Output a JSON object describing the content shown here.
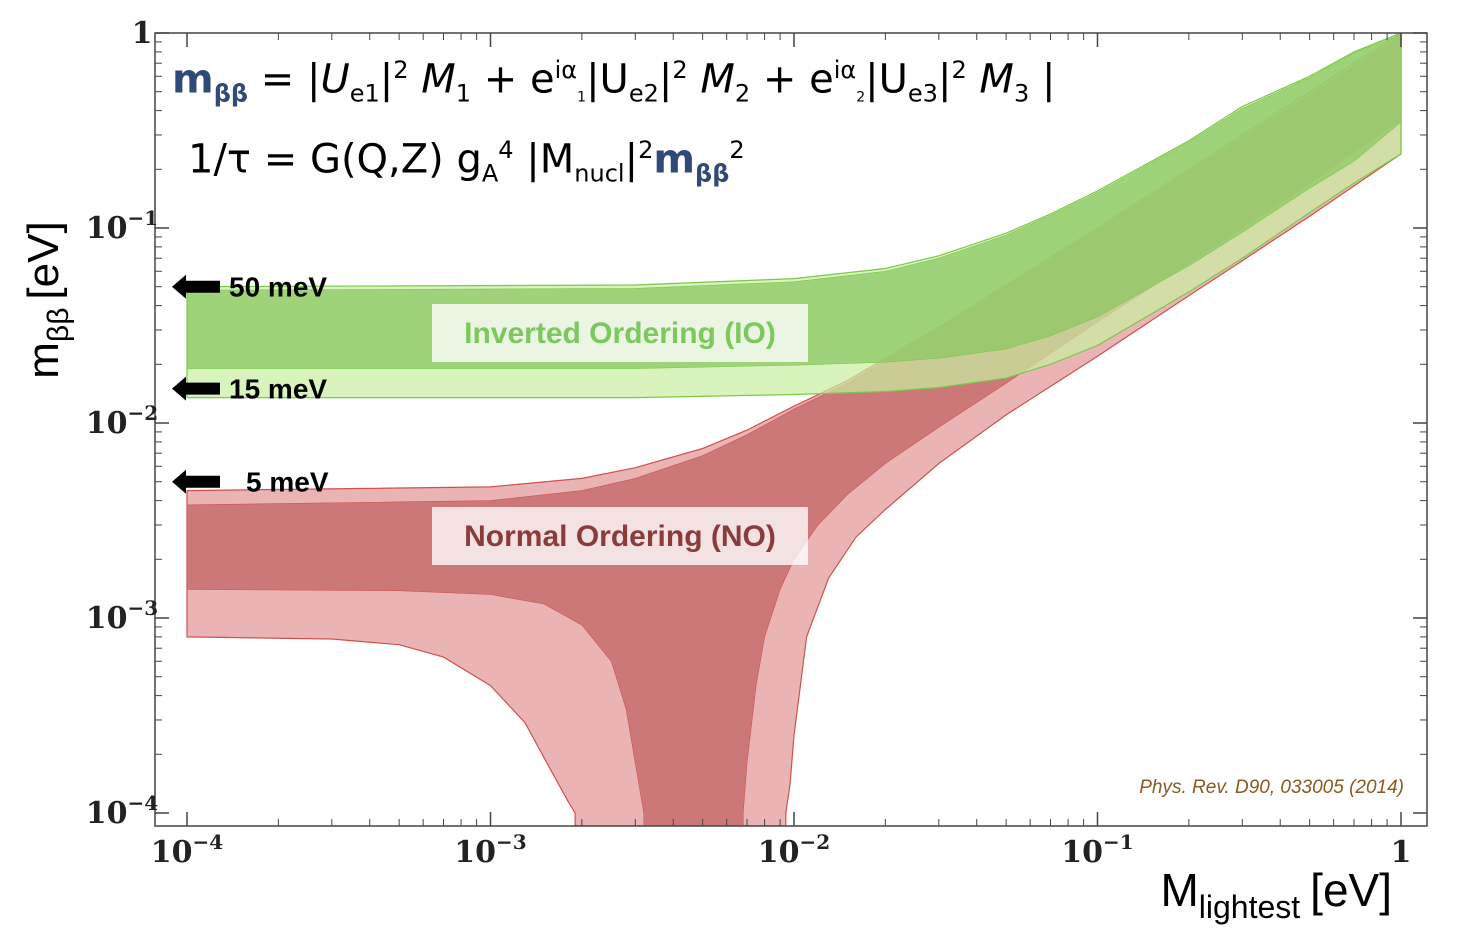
{
  "chart_data": {
    "type": "area",
    "xscale": "log",
    "yscale": "log",
    "xlim": [
      0.0001,
      1
    ],
    "ylim": [
      0.0001,
      1
    ],
    "xlabel": "M",
    "xlabel_sub": "lightest",
    "xlabel_unit": "[eV]",
    "ylabel": "m",
    "ylabel_sub": "ββ",
    "ylabel_unit": "[eV]",
    "x_ticks": [
      {
        "value": 0.0001,
        "base": "10",
        "exp": "−4"
      },
      {
        "value": 0.001,
        "base": "10",
        "exp": "−3"
      },
      {
        "value": 0.01,
        "base": "10",
        "exp": "−2"
      },
      {
        "value": 0.1,
        "base": "10",
        "exp": "−1"
      },
      {
        "value": 1,
        "base": "1",
        "exp": ""
      }
    ],
    "y_ticks": [
      {
        "value": 0.0001,
        "base": "10",
        "exp": "−4"
      },
      {
        "value": 0.001,
        "base": "10",
        "exp": "−3"
      },
      {
        "value": 0.01,
        "base": "10",
        "exp": "−2"
      },
      {
        "value": 0.1,
        "base": "10",
        "exp": "−1"
      },
      {
        "value": 1,
        "base": "1",
        "exp": ""
      }
    ],
    "annotations": [
      {
        "label": "50 meV",
        "value": 0.05
      },
      {
        "label": "15 meV",
        "value": 0.015
      },
      {
        "label": "5 meV",
        "value": 0.005
      }
    ],
    "region_labels": {
      "io": "Inverted Ordering (IO)",
      "no": "Normal Ordering (NO)"
    },
    "citation": "Phys. Rev. D90, 033005 (2014)",
    "series": [
      {
        "key": "io_outer",
        "color": "#c8f0a0",
        "x": [
          0.0001,
          0.003,
          0.01,
          0.02,
          0.03,
          0.05,
          0.07,
          0.1,
          0.2,
          0.3,
          0.5,
          0.7,
          1
        ],
        "upper": [
          0.05,
          0.051,
          0.055,
          0.062,
          0.072,
          0.094,
          0.118,
          0.155,
          0.28,
          0.42,
          0.6,
          0.8,
          1.0
        ],
        "lower": [
          0.0135,
          0.0135,
          0.014,
          0.0145,
          0.0152,
          0.017,
          0.02,
          0.025,
          0.047,
          0.07,
          0.12,
          0.17,
          0.24
        ]
      },
      {
        "key": "io_inner",
        "color": "#8cc864",
        "x": [
          0.0001,
          0.003,
          0.01,
          0.02,
          0.03,
          0.05,
          0.07,
          0.1,
          0.2,
          0.3,
          0.5,
          0.7,
          1
        ],
        "upper": [
          0.048,
          0.049,
          0.053,
          0.06,
          0.07,
          0.092,
          0.116,
          0.152,
          0.275,
          0.41,
          0.59,
          0.79,
          0.98
        ],
        "lower": [
          0.019,
          0.019,
          0.0198,
          0.0205,
          0.0215,
          0.024,
          0.028,
          0.035,
          0.064,
          0.095,
          0.16,
          0.22,
          0.35
        ]
      },
      {
        "key": "no_outer",
        "color": "#ebb4b4",
        "x": [
          0.0001,
          0.001,
          0.002,
          0.003,
          0.005,
          0.007,
          0.01,
          0.015,
          0.02,
          0.03,
          0.05,
          0.1,
          0.2,
          0.3,
          0.5,
          1
        ],
        "upper": [
          0.0045,
          0.0047,
          0.0052,
          0.0059,
          0.0074,
          0.0092,
          0.0122,
          0.0165,
          0.0215,
          0.031,
          0.051,
          0.1,
          0.2,
          0.3,
          0.5,
          1.0
        ],
        "lower_left": {
          "x": [
            0.0001,
            0.0003,
            0.0005,
            0.0007,
            0.001,
            0.0013,
            0.0016,
            0.0018,
            0.0019
          ],
          "y": [
            0.0008,
            0.00078,
            0.00073,
            0.00063,
            0.00045,
            0.00029,
            0.00016,
            0.000115,
            0.0001
          ]
        },
        "lower_right": {
          "x": [
            0.0094,
            0.0097,
            0.01,
            0.011,
            0.013,
            0.016,
            0.02,
            0.03,
            0.05,
            0.1,
            0.2,
            0.3,
            0.5,
            1
          ],
          "y": [
            0.0001,
            0.00014,
            0.00025,
            0.0008,
            0.0016,
            0.0026,
            0.0036,
            0.0062,
            0.011,
            0.022,
            0.045,
            0.068,
            0.115,
            0.24
          ]
        }
      },
      {
        "key": "no_inner",
        "color": "#cd7878",
        "x": [
          0.0001,
          0.001,
          0.002,
          0.003,
          0.005,
          0.007,
          0.01,
          0.015,
          0.02,
          0.03,
          0.05,
          0.1,
          0.2,
          0.3,
          0.5,
          1
        ],
        "upper": [
          0.0038,
          0.004,
          0.0045,
          0.0052,
          0.0068,
          0.0087,
          0.0118,
          0.016,
          0.021,
          0.0305,
          0.05,
          0.098,
          0.195,
          0.29,
          0.48,
          0.97
        ],
        "lower_left": {
          "x": [
            0.0001,
            0.0005,
            0.001,
            0.0015,
            0.002,
            0.0025,
            0.0028,
            0.003,
            0.0032
          ],
          "y": [
            0.0014,
            0.00138,
            0.00132,
            0.00118,
            0.00092,
            0.0006,
            0.00034,
            0.00018,
            0.0001
          ]
        },
        "lower_right": {
          "x": [
            0.0068,
            0.007,
            0.0075,
            0.008,
            0.009,
            0.01,
            0.012,
            0.015,
            0.02,
            0.03,
            0.05,
            0.1,
            0.2,
            0.3,
            0.5,
            1
          ],
          "y": [
            0.0001,
            0.00018,
            0.00045,
            0.0008,
            0.0014,
            0.002,
            0.003,
            0.0043,
            0.0062,
            0.0095,
            0.016,
            0.033,
            0.066,
            0.1,
            0.17,
            0.36
          ]
        }
      }
    ]
  },
  "formula": {
    "line1": {
      "lhs": "m",
      "lhs_sub": "ββ",
      "eq": " = |",
      "u1": "U",
      "u1_sub": "e1",
      "u1_pow": "|",
      "sq1": "2",
      "m1": " M",
      "m1_sub": "1",
      "plus1": " + e",
      "phase1": "iα",
      "phase1_sub": "1",
      "bar2": "|U",
      "u2_sub": "e2",
      "u2_pow": "|",
      "sq2": "2",
      "m2": " M",
      "m2_sub": "2",
      "plus2": " + e",
      "phase2": "iα",
      "phase2_sub": "2",
      "bar3": "|U",
      "u3_sub": "e3",
      "u3_pow": "|",
      "sq3": "2",
      "m3": " M",
      "m3_sub": "3",
      "close": " |"
    },
    "line2": {
      "lhs": "1/τ = G(Q,Z) g",
      "ga_sub": "A",
      "ga_sup": "4",
      "mid": " |M",
      "mn_sub": "nucl",
      "mn_bar": "|",
      "mn_sq": "2",
      "m": "m",
      "m_sub": "ββ",
      "m_sq": "2"
    }
  }
}
